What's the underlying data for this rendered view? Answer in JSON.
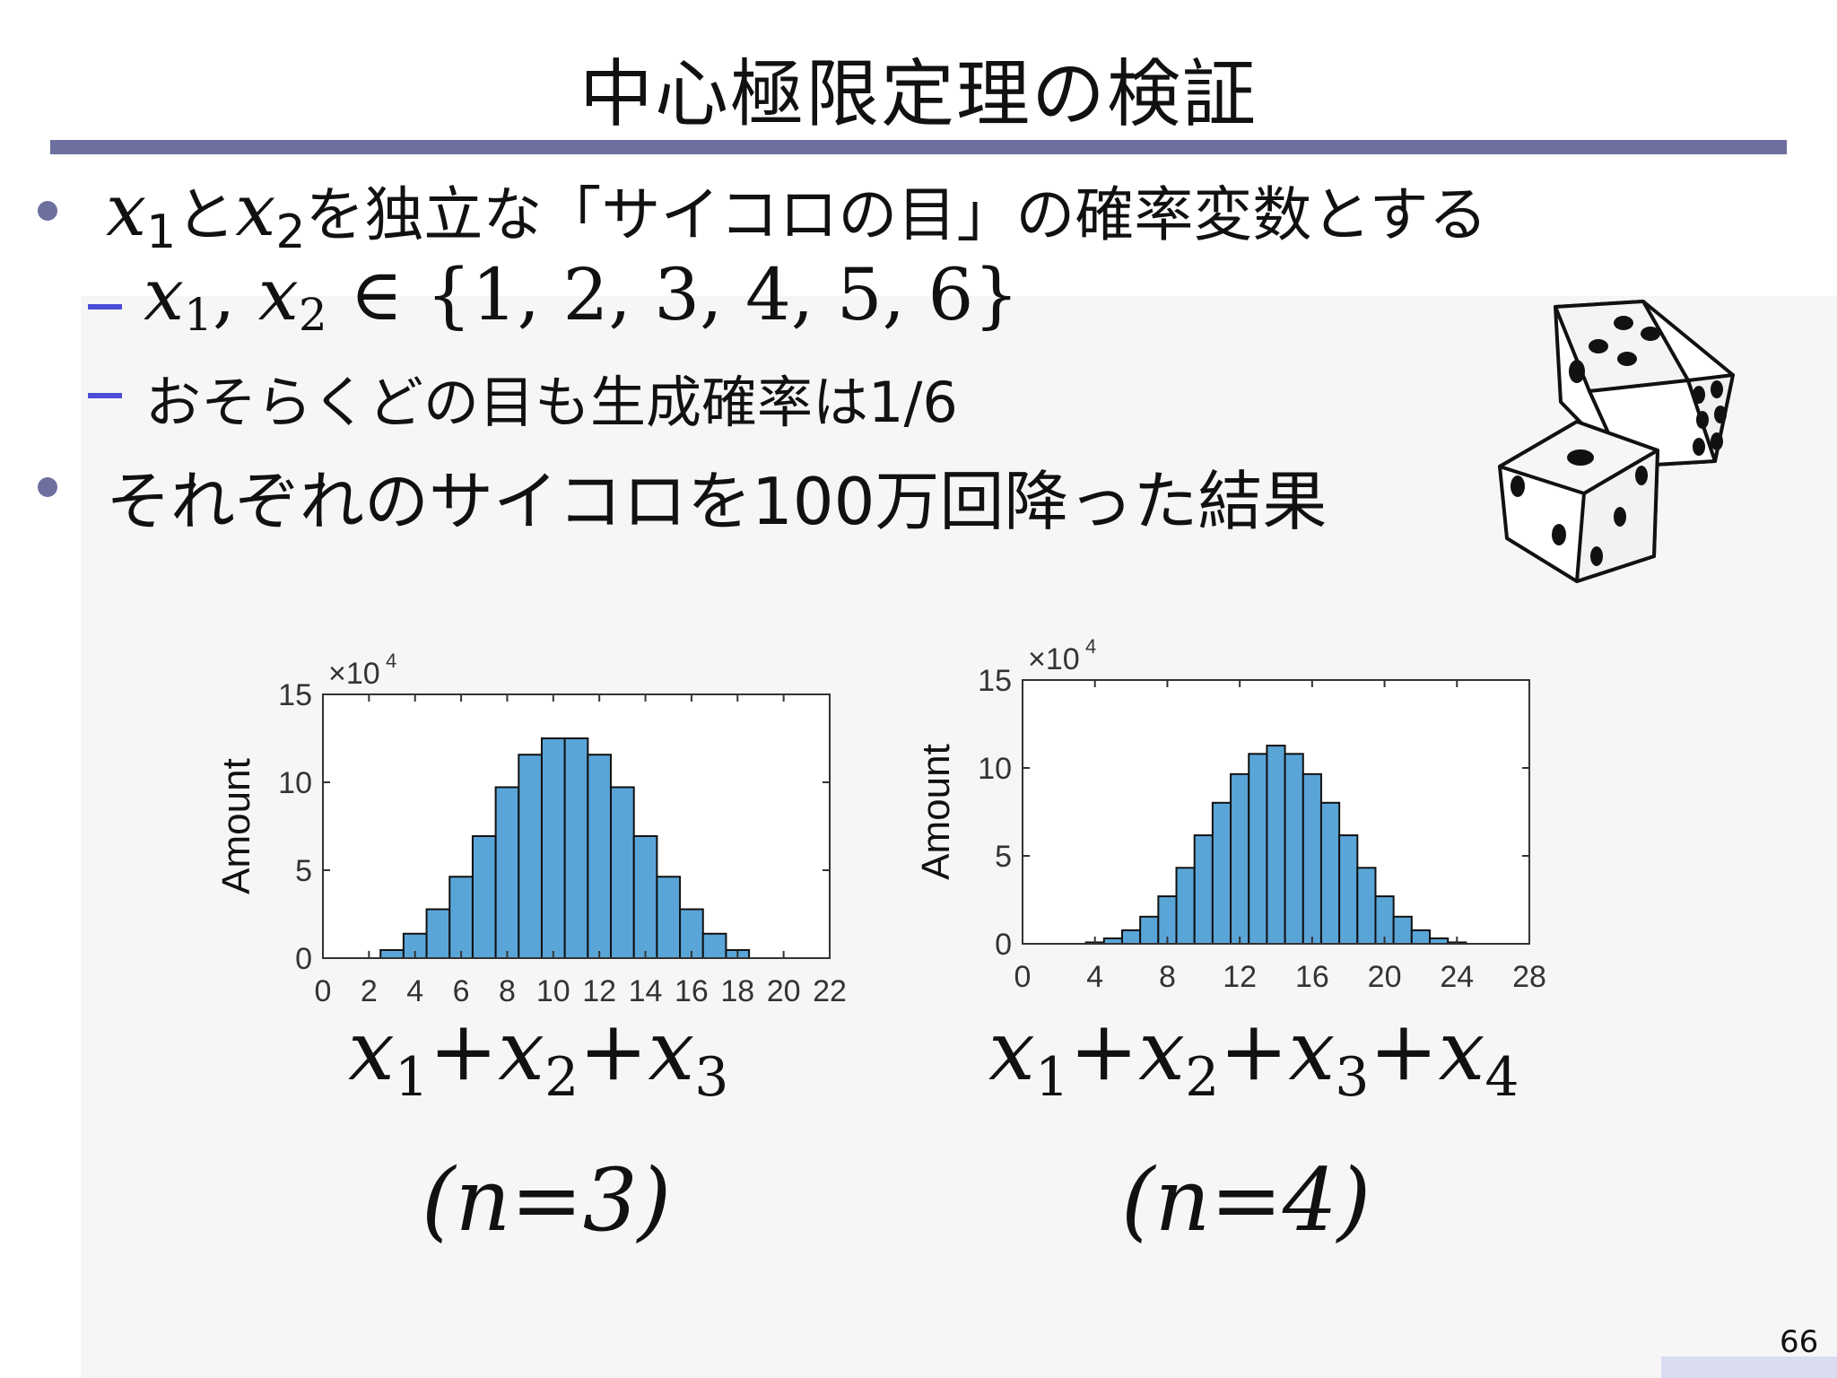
{
  "slide": {
    "title": "中心極限定理の検証",
    "page_number": "66",
    "accent_color": "#6d6f9f",
    "bullets": [
      {
        "var_a": "x",
        "sub_a": "1",
        "connector": "と",
        "var_b": "x",
        "sub_b": "2",
        "text": "を独立な「サイコロの目」の確率変数とする"
      },
      {
        "text": "それぞれのサイコロを100万回降った結果"
      }
    ],
    "sub_bullets": [
      {
        "var_a": "x",
        "sub_a": "1",
        "sep": ", ",
        "var_b": "x",
        "sub_b": "2",
        "set": " ∈ {1, 2, 3, 4, 5, 6}"
      },
      {
        "text": "おそらくどの目も生成確率は1/6"
      }
    ],
    "dice_icon": "two-dice-icon"
  },
  "chart_data": [
    {
      "type": "bar",
      "bar_color": "#5aa5d8",
      "ylabel": "Amount",
      "exponent_label": "×10",
      "exponent_power": "4",
      "ylim": [
        0,
        15
      ],
      "yticks": [
        "0",
        "5",
        "10",
        "15"
      ],
      "xlim": [
        0,
        22
      ],
      "xticks": [
        "0",
        "2",
        "4",
        "6",
        "8",
        "10",
        "12",
        "14",
        "16",
        "18",
        "20",
        "22"
      ],
      "categories": [
        3,
        4,
        5,
        6,
        7,
        8,
        9,
        10,
        11,
        12,
        13,
        14,
        15,
        16,
        17,
        18
      ],
      "values": [
        0.46,
        1.39,
        2.78,
        4.63,
        6.94,
        9.72,
        11.57,
        12.5,
        12.5,
        11.57,
        9.72,
        6.94,
        4.63,
        2.78,
        1.39,
        0.46
      ],
      "formula_terms": [
        "1",
        "2",
        "3"
      ],
      "formula_var": "x",
      "formula_op": "+",
      "n_label": "(n=3)"
    },
    {
      "type": "bar",
      "bar_color": "#5aa5d8",
      "ylabel": "Amount",
      "exponent_label": "×10",
      "exponent_power": "4",
      "ylim": [
        0,
        15
      ],
      "yticks": [
        "0",
        "5",
        "10",
        "15"
      ],
      "xlim": [
        0,
        28
      ],
      "xticks": [
        "0",
        "4",
        "8",
        "12",
        "16",
        "20",
        "24",
        "28"
      ],
      "categories": [
        4,
        5,
        6,
        7,
        8,
        9,
        10,
        11,
        12,
        13,
        14,
        15,
        16,
        17,
        18,
        19,
        20,
        21,
        22,
        23,
        24
      ],
      "values": [
        0.08,
        0.31,
        0.77,
        1.54,
        2.7,
        4.32,
        6.17,
        8.02,
        9.65,
        10.8,
        11.27,
        10.8,
        9.65,
        8.02,
        6.17,
        4.32,
        2.7,
        1.54,
        0.77,
        0.31,
        0.08
      ],
      "formula_terms": [
        "1",
        "2",
        "3",
        "4"
      ],
      "formula_var": "x",
      "formula_op": "+",
      "n_label": "(n=4)"
    }
  ]
}
